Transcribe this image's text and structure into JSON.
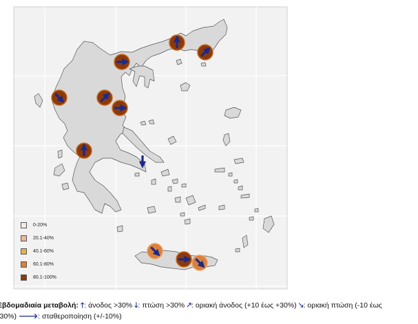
{
  "legend": {
    "items": [
      {
        "label": "0-20%",
        "color": "#f6ece4"
      },
      {
        "label": "20.1-40%",
        "color": "#eab89a"
      },
      {
        "label": "40.1-60%",
        "color": "#e8b24b"
      },
      {
        "label": "60.1-80%",
        "color": "#d9803f"
      },
      {
        "label": "80.1-100%",
        "color": "#8c3a0c"
      }
    ]
  },
  "colors": {
    "land": "#d9d9d9",
    "border": "#555555",
    "arrow": "#1b2a8a",
    "panel_bg": "#f2f2f2",
    "grid": "#ffffff"
  },
  "caption": {
    "prefix": "Εβδομαδιαία μεταβολή:",
    "up_icon": "arrow-up-icon",
    "up_text": ": άνοδος >30%",
    "down_icon": "arrow-down-icon",
    "down_text": ": πτώση >30%",
    "mild_up_icon": "arrow-up-right-icon",
    "mild_up_text": ": οριακή άνοδος (+10 έως +30%)",
    "mild_down_icon": "arrow-down-right-icon",
    "mild_down_text": ": οριακή πτώση  (-10 έως",
    "line2_start": "-30%)",
    "stable_icon": "arrow-right-icon",
    "stable_text": ":  σταθεροποίηση (+/-10%)"
  },
  "markers": [
    {
      "name": "marker-thrace-west",
      "fill": "#8c3a0c",
      "dir": "up"
    },
    {
      "name": "marker-thrace-east",
      "fill": "#8c3a0c",
      "dir": "up-right"
    },
    {
      "name": "marker-thessaloniki",
      "fill": "#8c3a0c",
      "dir": "right"
    },
    {
      "name": "marker-epirus",
      "fill": "#8c3a0c",
      "dir": "down-right"
    },
    {
      "name": "marker-thessaly-west",
      "fill": "#8c3a0c",
      "dir": "up-right"
    },
    {
      "name": "marker-thessaly-east",
      "fill": "#8c3a0c",
      "dir": "right"
    },
    {
      "name": "marker-western-greece",
      "fill": "#8c3a0c",
      "dir": "up"
    },
    {
      "name": "marker-attica",
      "fill": "none",
      "dir": "down"
    },
    {
      "name": "marker-crete-west",
      "fill": "#d9803f",
      "dir": "down-right"
    },
    {
      "name": "marker-crete-center",
      "fill": "#8c3a0c",
      "dir": "right"
    },
    {
      "name": "marker-crete-east",
      "fill": "#d9803f",
      "dir": "down-right"
    }
  ]
}
